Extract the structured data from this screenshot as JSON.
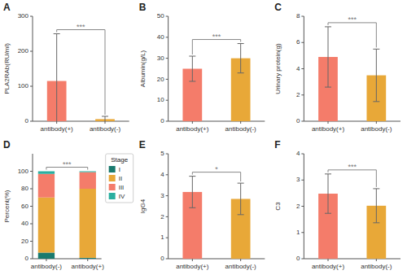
{
  "chart_data": [
    {
      "type": "bar",
      "title": "A",
      "ylabel": "PLA2RAb(RU/ml)",
      "categories": [
        "antibody(+)",
        "antibody(-)"
      ],
      "values": [
        115,
        6
      ],
      "errors": [
        135,
        8
      ],
      "colors": [
        "#F47C6A",
        "#E8A838"
      ],
      "ylim": [
        0,
        300
      ],
      "yticks": [
        0,
        100,
        200,
        300
      ],
      "annotation": "***"
    },
    {
      "type": "bar",
      "title": "B",
      "ylabel": "Albumin(g/L)",
      "categories": [
        "antibody(+)",
        "antibody(-)"
      ],
      "values": [
        25,
        30
      ],
      "errors": [
        6,
        7
      ],
      "colors": [
        "#F47C6A",
        "#E8A838"
      ],
      "ylim": [
        0,
        50
      ],
      "yticks": [
        0,
        10,
        20,
        30,
        40,
        50
      ],
      "annotation": "***"
    },
    {
      "type": "bar",
      "title": "C",
      "ylabel": "Urinary protein(g)",
      "categories": [
        "antibody(+)",
        "antibody(-)"
      ],
      "values": [
        4.9,
        3.5
      ],
      "errors": [
        2.3,
        2.0
      ],
      "colors": [
        "#F47C6A",
        "#E8A838"
      ],
      "ylim": [
        0,
        8
      ],
      "yticks": [
        0,
        2,
        4,
        6,
        8
      ],
      "annotation": "***"
    },
    {
      "type": "bar",
      "title": "D",
      "ylabel": "Percent(%)",
      "stacked": true,
      "categories": [
        "antibody(-)",
        "antibody(+)"
      ],
      "series": [
        {
          "name": "I",
          "color": "#1A7A6E",
          "values": [
            7,
            1
          ]
        },
        {
          "name": "II",
          "color": "#E8A838",
          "values": [
            63,
            79
          ]
        },
        {
          "name": "III",
          "color": "#F47C6A",
          "values": [
            27,
            19
          ]
        },
        {
          "name": "IV",
          "color": "#2AAFA0",
          "values": [
            3,
            1
          ]
        }
      ],
      "legend": "right",
      "legend_title": "Stage",
      "ylim": [
        0,
        120
      ],
      "yticks": [
        0,
        20,
        40,
        60,
        80,
        100
      ],
      "annotation": "***"
    },
    {
      "type": "bar",
      "title": "E",
      "ylabel": "IgG4",
      "categories": [
        "antibody(+)",
        "antibody(-)"
      ],
      "values": [
        3.18,
        2.85
      ],
      "errors": [
        0.75,
        0.75
      ],
      "colors": [
        "#F47C6A",
        "#E8A838"
      ],
      "ylim": [
        0,
        5
      ],
      "yticks": [
        0,
        1,
        2,
        3,
        4,
        5
      ],
      "annotation": "*"
    },
    {
      "type": "bar",
      "title": "F",
      "ylabel": "C3",
      "categories": [
        "antibody(+)",
        "antibody(-)"
      ],
      "values": [
        2.48,
        2.02
      ],
      "errors": [
        0.75,
        0.65
      ],
      "colors": [
        "#F47C6A",
        "#E8A838"
      ],
      "ylim": [
        0,
        4
      ],
      "yticks": [
        0,
        1,
        2,
        3,
        4
      ],
      "annotation": "***"
    }
  ]
}
